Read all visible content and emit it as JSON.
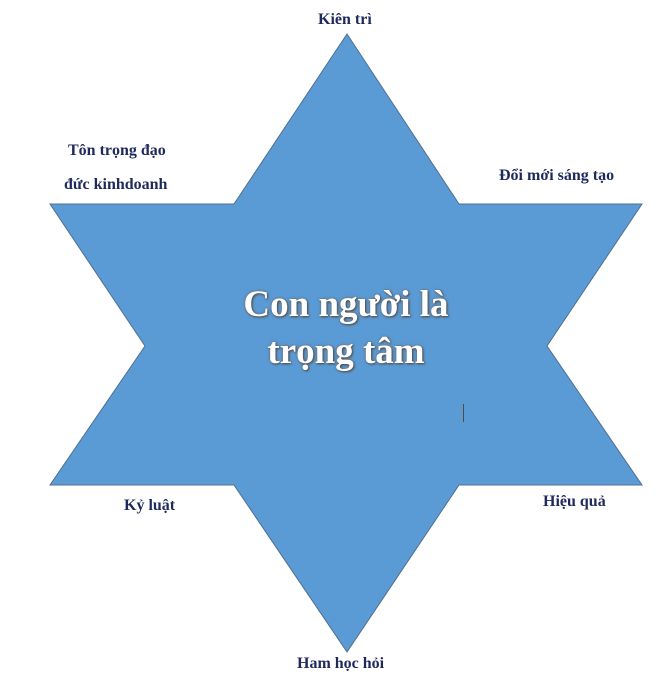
{
  "diagram": {
    "star_fill": "#5b9bd5",
    "star_stroke": "#4f6f8f",
    "label_color": "#1f2a5c",
    "center_text_color": "#ffffff",
    "center": {
      "line1": "Con người là",
      "line2": "trọng tâm"
    },
    "points": {
      "top": "Kiên trì",
      "upper_left_line1": "Tôn trọng đạo",
      "upper_left_line2": "đức kinhdoanh",
      "upper_right": "Đổi mới sáng tạo",
      "lower_left": "Kỷ luật",
      "lower_right": "Hiệu quả",
      "bottom": "Ham học hỏi"
    }
  }
}
